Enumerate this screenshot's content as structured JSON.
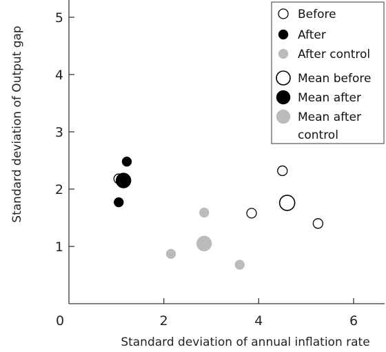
{
  "chart_data": {
    "type": "scatter",
    "xlabel": "Standard deviation of annual inflation rate",
    "ylabel": "Standard deviation of Output gap",
    "xlim": [
      0,
      6.3
    ],
    "ylim": [
      0,
      5.3
    ],
    "x_ticks": [
      0,
      2,
      4,
      6
    ],
    "y_ticks": [
      1,
      2,
      3,
      4,
      5
    ],
    "x_tick_labels": [
      "0",
      "2",
      "4",
      "6"
    ],
    "y_tick_labels": [
      "1",
      "2",
      "3",
      "4",
      "5"
    ],
    "grid": false,
    "legend_position": "top-right",
    "series": [
      {
        "name": "Before",
        "style": "open",
        "color": "#000000",
        "size": "small",
        "points": [
          [
            3.85,
            1.58
          ],
          [
            4.5,
            2.32
          ],
          [
            5.25,
            1.4
          ],
          [
            1.05,
            2.18
          ]
        ]
      },
      {
        "name": "After",
        "style": "filled",
        "color": "#000000",
        "size": "small",
        "points": [
          [
            1.05,
            1.77
          ],
          [
            1.22,
            2.48
          ]
        ]
      },
      {
        "name": "After control",
        "style": "filled",
        "color": "#bbbbbb",
        "size": "small",
        "points": [
          [
            2.15,
            0.87
          ],
          [
            2.85,
            1.59
          ],
          [
            3.6,
            0.68
          ]
        ]
      },
      {
        "name": "Mean before",
        "style": "open",
        "color": "#000000",
        "size": "large",
        "points": [
          [
            4.6,
            1.76
          ]
        ]
      },
      {
        "name": "Mean after",
        "style": "filled",
        "color": "#000000",
        "size": "large",
        "points": [
          [
            1.15,
            2.15
          ]
        ]
      },
      {
        "name": "Mean after\ncontrol",
        "style": "filled",
        "color": "#bbbbbb",
        "size": "large",
        "points": [
          [
            2.85,
            1.05
          ]
        ]
      }
    ]
  }
}
